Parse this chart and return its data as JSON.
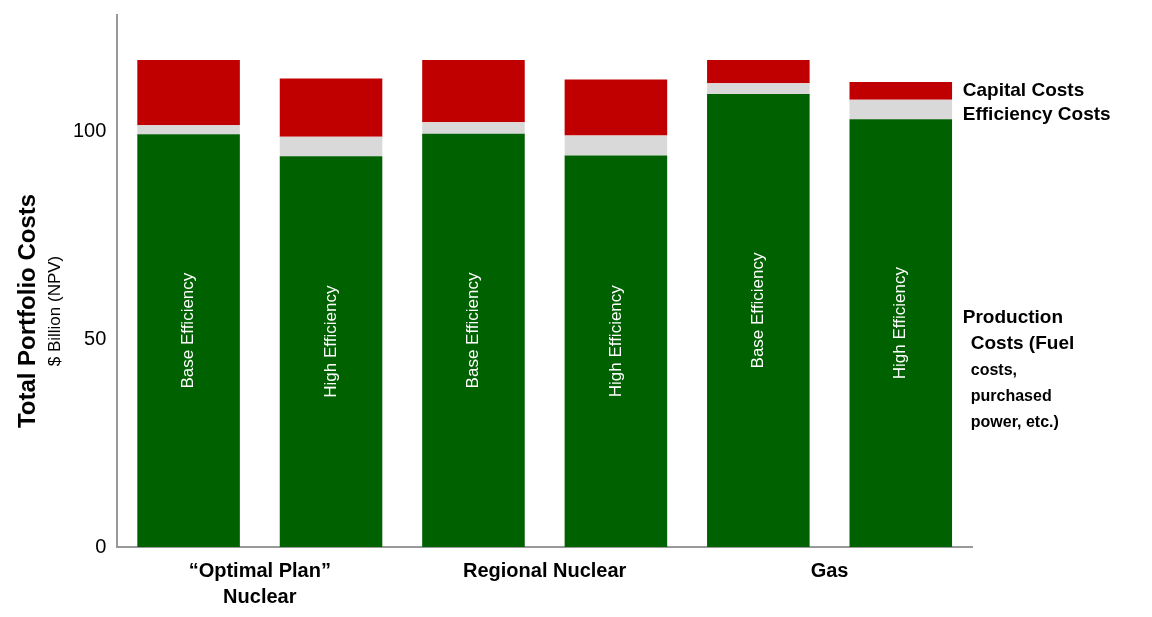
{
  "chart_data": {
    "type": "bar",
    "stacked": true,
    "ylabel": "Total Portfolio Costs",
    "subtitle": "$ Billion (NPV)",
    "categories": [
      "Base Efficiency",
      "High Efficiency",
      "Base Efficiency",
      "High Efficiency",
      "Base Efficiency",
      "High Efficiency"
    ],
    "series": [
      {
        "name": "Production Costs (Fuel costs, purchased power, etc.)",
        "color": "#006100",
        "values": [
          99.3,
          94.0,
          99.4,
          94.2,
          109.0,
          102.9
        ]
      },
      {
        "name": "Efficiency Costs",
        "color": "#d9d9d9",
        "values": [
          2.2,
          4.7,
          2.8,
          4.8,
          2.6,
          4.7
        ]
      },
      {
        "name": "Capital Costs",
        "color": "#c00000",
        "values": [
          15.7,
          14.0,
          15.0,
          13.5,
          5.6,
          4.3
        ]
      }
    ],
    "annotations": [
      "“Optimal Plan” Nuclear",
      "Regional Nuclear",
      "Gas"
    ],
    "ylim": [
      0,
      128
    ],
    "yticks": [
      0,
      50,
      100
    ],
    "grid": false,
    "legend": "right"
  }
}
